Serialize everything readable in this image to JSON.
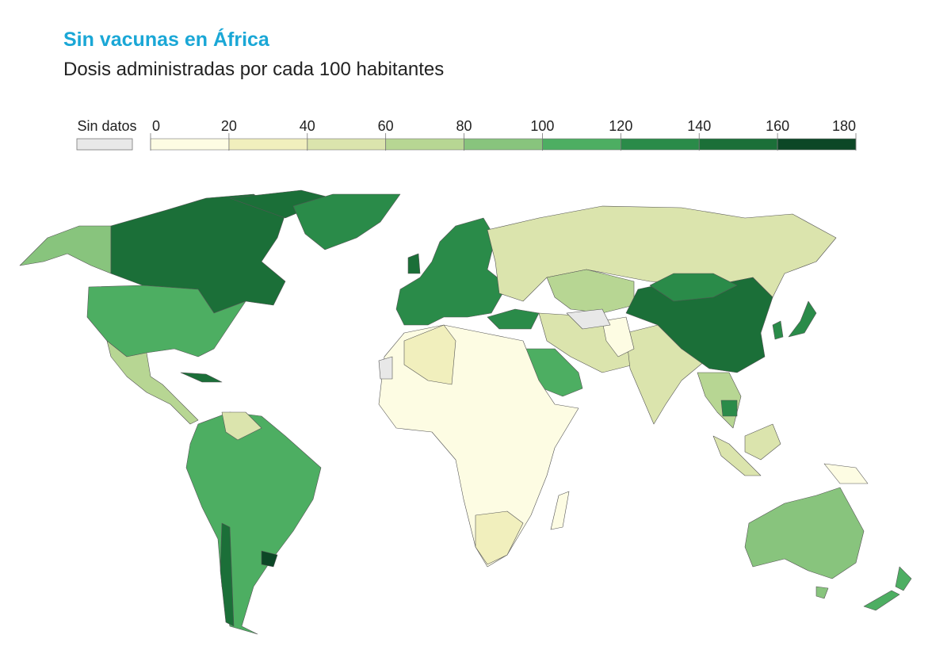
{
  "title": "Sin vacunas en África",
  "subtitle": "Dosis administradas por cada 100 habitantes",
  "legend": {
    "no_data_label": "Sin datos",
    "no_data_color": "#e8e8e8",
    "ticks": [
      0,
      20,
      40,
      60,
      80,
      100,
      120,
      140,
      160,
      180
    ],
    "colors": [
      "#fdfce3",
      "#f1efbd",
      "#dbe4ad",
      "#b7d693",
      "#88c47d",
      "#4dae62",
      "#2a8b49",
      "#1b6f38",
      "#0c4726"
    ]
  }
}
